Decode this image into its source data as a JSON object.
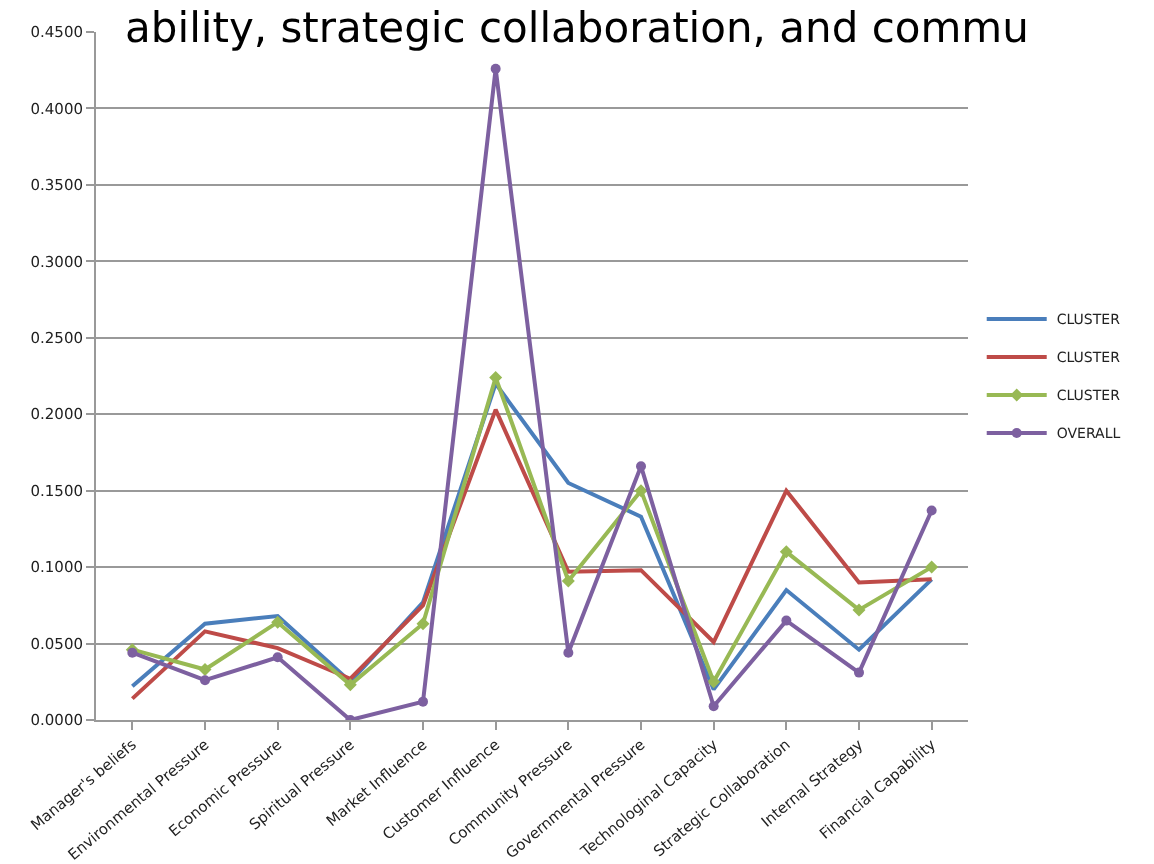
{
  "chart_data": {
    "type": "line",
    "title": "ability, strategic collaboration, and commu",
    "categories": [
      "Manager's beliefs",
      "Environmental Pressure",
      "Economic Pressure",
      "Spiritual Pressure",
      "Market Influence",
      "Customer Influence",
      "Community Pressure",
      "Governmental Pressure",
      "Technologinal Capacity",
      "Strategic Collaboration",
      "Internal Strategy",
      "Financial Capability"
    ],
    "series": [
      {
        "name": "CLUSTER",
        "color": "#4a7ebb",
        "marker": "none",
        "values": [
          0.022,
          0.063,
          0.068,
          0.025,
          0.077,
          0.22,
          0.155,
          0.133,
          0.02,
          0.085,
          0.046,
          0.092
        ]
      },
      {
        "name": "CLUSTER",
        "color": "#be4b48",
        "marker": "none",
        "values": [
          0.014,
          0.058,
          0.047,
          0.027,
          0.075,
          0.203,
          0.097,
          0.098,
          0.051,
          0.15,
          0.09,
          0.092
        ]
      },
      {
        "name": "CLUSTER",
        "color": "#98b954",
        "marker": "diamond",
        "values": [
          0.046,
          0.033,
          0.064,
          0.023,
          0.063,
          0.224,
          0.091,
          0.15,
          0.025,
          0.11,
          0.072,
          0.1
        ]
      },
      {
        "name": "OVERALL",
        "color": "#7d60a0",
        "marker": "circle",
        "values": [
          0.044,
          0.026,
          0.041,
          0.0,
          0.012,
          0.426,
          0.044,
          0.166,
          0.009,
          0.065,
          0.031,
          0.137
        ]
      }
    ],
    "ylim": [
      0,
      0.45
    ],
    "yticks": [
      {
        "value": 0,
        "label": "0.0000"
      },
      {
        "value": 0.05,
        "label": "0.0500"
      },
      {
        "value": 0.1,
        "label": "0.1000"
      },
      {
        "value": 0.15,
        "label": "0.1500"
      },
      {
        "value": 0.2,
        "label": "0.2000"
      },
      {
        "value": 0.25,
        "label": "0.2500"
      },
      {
        "value": 0.3,
        "label": "0.3000"
      },
      {
        "value": 0.35,
        "label": "0.3500"
      },
      {
        "value": 0.4,
        "label": "0.4000"
      },
      {
        "value": 0.45,
        "label": "0.4500"
      }
    ],
    "grid": "y",
    "legend": "right",
    "line_style": "solid"
  }
}
